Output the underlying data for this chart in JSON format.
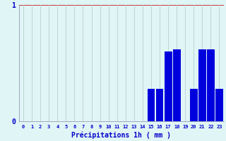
{
  "hours": [
    0,
    1,
    2,
    3,
    4,
    5,
    6,
    7,
    8,
    9,
    10,
    11,
    12,
    13,
    14,
    15,
    16,
    17,
    18,
    19,
    20,
    21,
    22,
    23
  ],
  "values": [
    0,
    0,
    0,
    0,
    0,
    0,
    0,
    0,
    0,
    0,
    0,
    0,
    0,
    0,
    0,
    0.28,
    0.28,
    0.6,
    0.62,
    0,
    0.28,
    0.62,
    0.62,
    0.28
  ],
  "bar_color": "#0000dd",
  "background_color": "#e0f5f5",
  "grid_color": "#b8d0d0",
  "red_grid_color": "#cc3333",
  "axis_color": "#8888aa",
  "text_color": "#0000cc",
  "xlabel": "Précipitations 1h ( mm )",
  "ylim": [
    0,
    1.0
  ],
  "yticks": [
    0,
    1
  ],
  "ytick_labels": [
    "0",
    "1"
  ],
  "xlim": [
    -0.5,
    23.5
  ]
}
